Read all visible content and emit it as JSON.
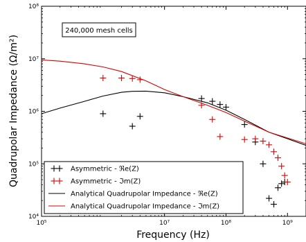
{
  "chart_data": {
    "type": "line",
    "title": "",
    "xlabel": "Frequency (Hz)",
    "ylabel": "Quadrupolar Impedance (Ω/m²)",
    "x_scale": "log",
    "y_scale": "log",
    "xlim": [
      100000,
      2000000000
    ],
    "ylim": [
      10000,
      100000000
    ],
    "x_ticks": [
      {
        "value": 100000,
        "label": "10⁵"
      },
      {
        "value": 10000000,
        "label": "10⁷"
      },
      {
        "value": 100000000,
        "label": "10⁸"
      },
      {
        "value": 1000000000,
        "label": "10⁹"
      }
    ],
    "y_ticks": [
      {
        "value": 10000,
        "label": "10⁴"
      },
      {
        "value": 100000,
        "label": "10⁵"
      },
      {
        "value": 1000000,
        "label": "10⁶"
      },
      {
        "value": 10000000,
        "label": "10⁷"
      },
      {
        "value": 100000000,
        "label": "10⁸"
      }
    ],
    "grid": false,
    "legend_position": "bottom-left",
    "annotation": "240,000 mesh cells",
    "series": [
      {
        "name": "Asymmetric - ℜe(Z)",
        "kind": "markers",
        "color": "#000000",
        "points": [
          [
            1000000,
            900000
          ],
          [
            3000000,
            520000
          ],
          [
            4000000,
            800000
          ],
          [
            40000000,
            1750000
          ],
          [
            60000000,
            1550000
          ],
          [
            80000000,
            1350000
          ],
          [
            100000000,
            1200000
          ],
          [
            200000000,
            560000
          ],
          [
            300000000,
            260000
          ],
          [
            400000000,
            100000
          ],
          [
            500000000,
            22000
          ],
          [
            600000000,
            17000
          ],
          [
            700000000,
            35000
          ],
          [
            800000000,
            42000
          ],
          [
            900000000,
            45000
          ]
        ]
      },
      {
        "name": "Asymmetric - ℑm(Z)",
        "kind": "markers",
        "color": "#dd0000",
        "points": [
          [
            1000000,
            4300000
          ],
          [
            2000000,
            4300000
          ],
          [
            3000000,
            4200000
          ],
          [
            4000000,
            4000000
          ],
          [
            40000000,
            1300000
          ],
          [
            60000000,
            700000
          ],
          [
            80000000,
            330000
          ],
          [
            200000000,
            290000
          ],
          [
            300000000,
            300000
          ],
          [
            400000000,
            270000
          ],
          [
            500000000,
            230000
          ],
          [
            600000000,
            170000
          ],
          [
            700000000,
            130000
          ],
          [
            800000000,
            90000
          ],
          [
            900000000,
            60000
          ],
          [
            1000000000,
            45000
          ]
        ]
      },
      {
        "name": "Analytical Quadrupolar Impedance - ℜe(Z)",
        "kind": "line",
        "color": "#000000",
        "points": [
          [
            100000,
            900000
          ],
          [
            200000,
            1150000
          ],
          [
            500000,
            1550000
          ],
          [
            1000000,
            1950000
          ],
          [
            2000000,
            2300000
          ],
          [
            3000000,
            2400000
          ],
          [
            5000000,
            2420000
          ],
          [
            10000000,
            2250000
          ],
          [
            20000000,
            1900000
          ],
          [
            50000000,
            1450000
          ],
          [
            100000000,
            1050000
          ],
          [
            200000000,
            700000
          ],
          [
            500000000,
            400000
          ],
          [
            1000000000,
            300000
          ],
          [
            2000000000,
            225000
          ]
        ]
      },
      {
        "name": "Analytical Quadrupolar Impedance - ℑm(Z)",
        "kind": "line",
        "color": "#dd0000",
        "points": [
          [
            100000,
            9500000
          ],
          [
            200000,
            9000000
          ],
          [
            500000,
            8000000
          ],
          [
            1000000,
            7000000
          ],
          [
            2000000,
            5700000
          ],
          [
            5000000,
            3800000
          ],
          [
            10000000,
            2600000
          ],
          [
            20000000,
            1900000
          ],
          [
            50000000,
            1300000
          ],
          [
            100000000,
            950000
          ],
          [
            200000000,
            650000
          ],
          [
            500000000,
            400000
          ],
          [
            1000000000,
            310000
          ],
          [
            2000000000,
            240000
          ]
        ]
      }
    ]
  }
}
